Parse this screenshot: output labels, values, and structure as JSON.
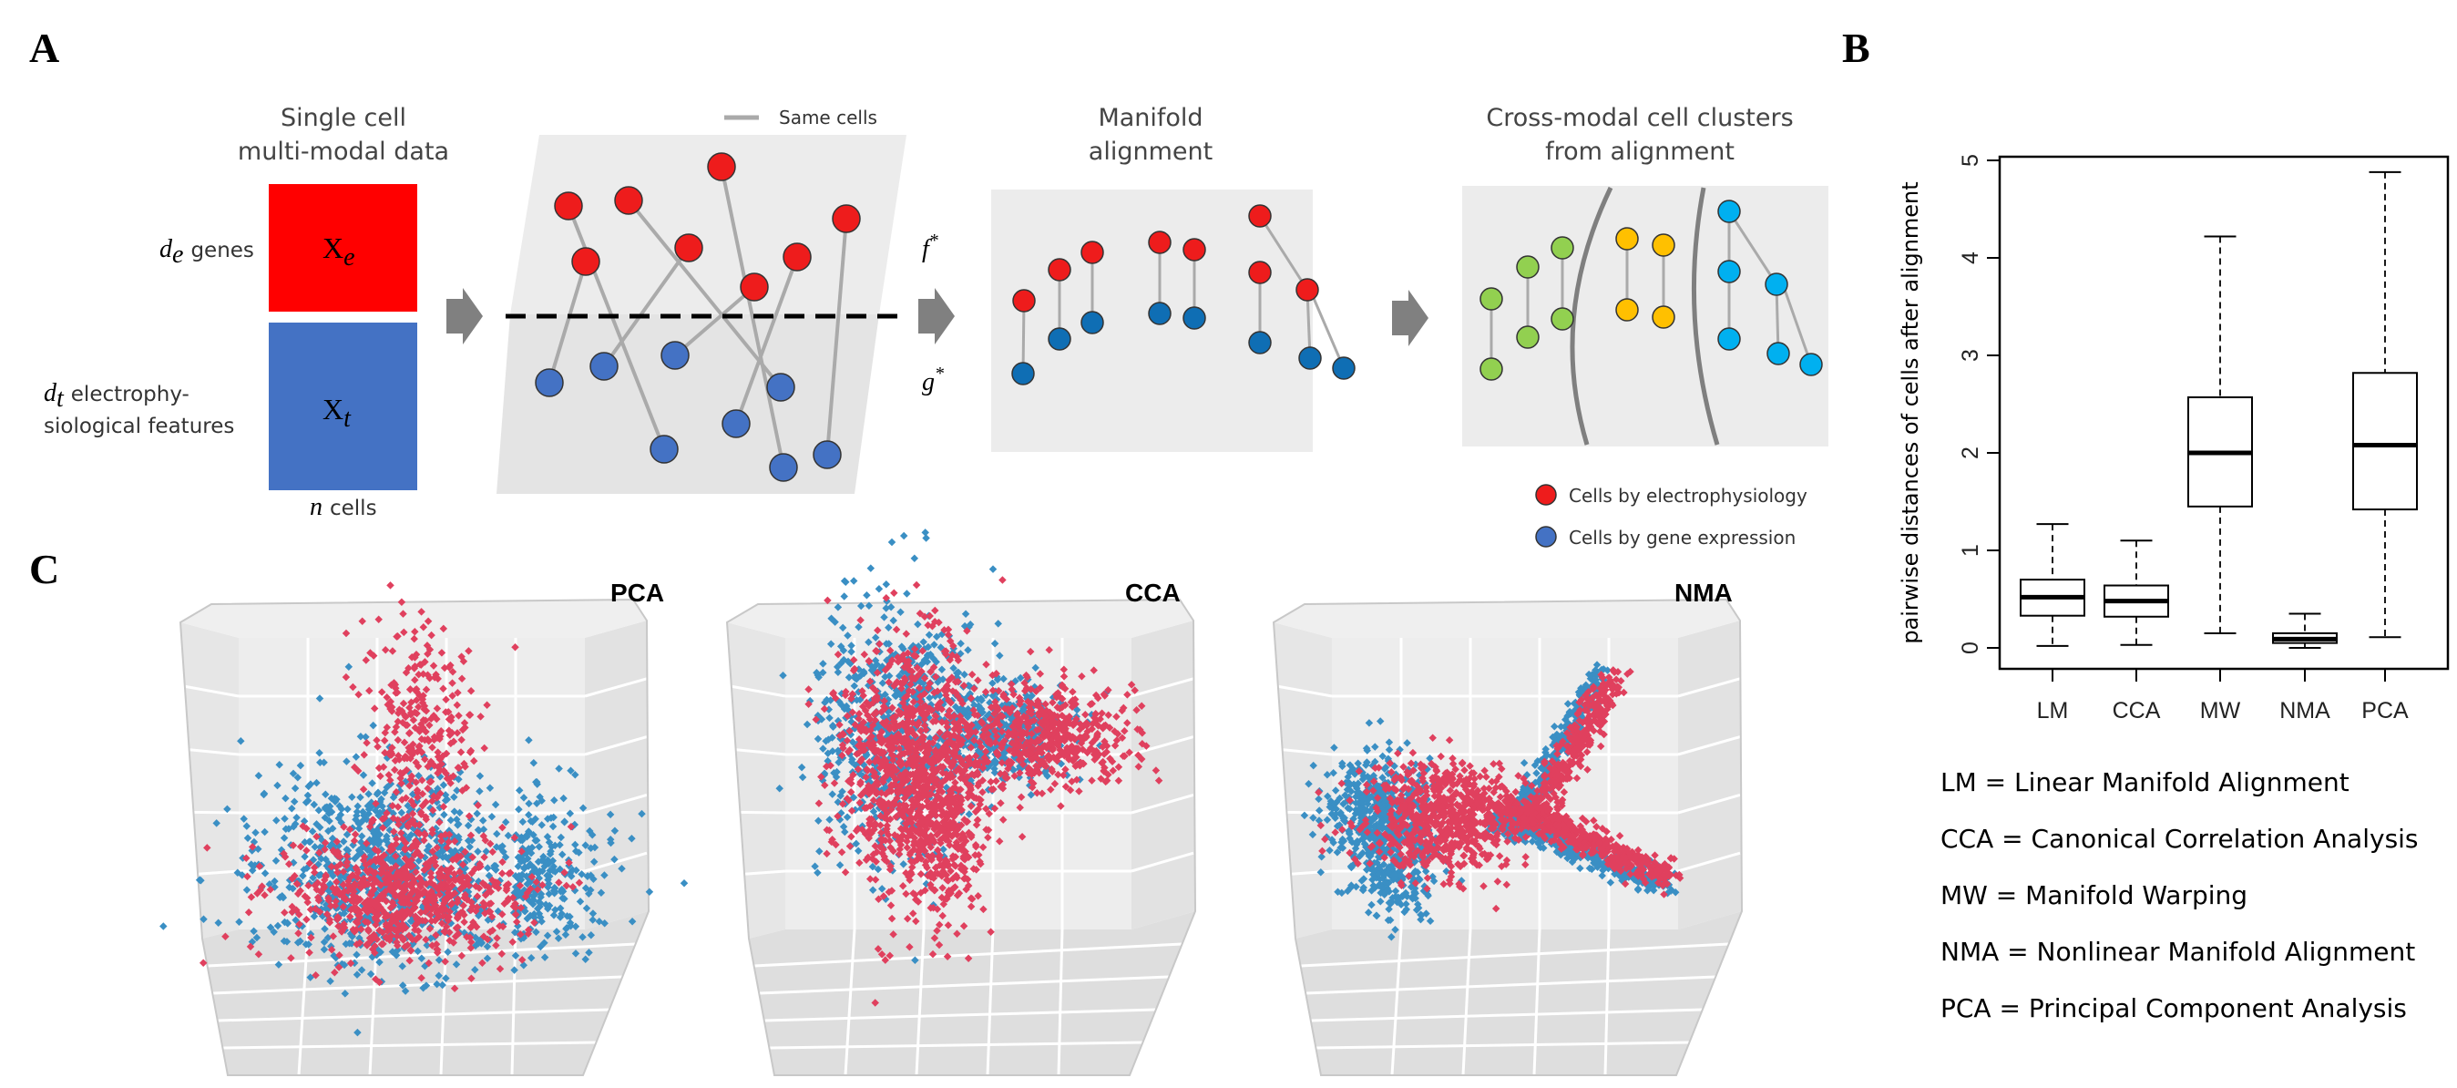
{
  "panels": {
    "a": "A",
    "b": "B",
    "c": "C"
  },
  "panel_a": {
    "step1_title_line1": "Single cell",
    "step1_title_line2": "multi-modal data",
    "genes_label": "genes",
    "genes_var": "d",
    "genes_sub": "e",
    "ephys_label_line1": "electrophy-",
    "ephys_label_line2": "siological features",
    "ephys_var": "d",
    "ephys_sub": "t",
    "xe_main": "X",
    "xe_sub": "e",
    "xt_main": "X",
    "xt_sub": "t",
    "cells_var": "n",
    "cells_label": "cells",
    "same_cells": "Same cells",
    "f_label": "f",
    "g_label": "g",
    "star": "*",
    "step3_title_line1": "Manifold",
    "step3_title_line2": "alignment",
    "step4_title_line1": "Cross-modal cell clusters",
    "step4_title_line2": "from alignment",
    "legend_red": "Cells by electrophysiology",
    "legend_blue": "Cells by gene expression",
    "colors": {
      "red": "#ee1c1c",
      "blue": "#4472c4",
      "green": "#92d050",
      "yellow": "#ffc000",
      "cyan": "#00b0f0",
      "dark_blue": "#0f6eb4"
    }
  },
  "panel_c": {
    "plots": [
      {
        "label": "PCA"
      },
      {
        "label": "CCA"
      },
      {
        "label": "NMA"
      }
    ],
    "colors": {
      "red": "#e0405e",
      "blue": "#3a8fc4"
    }
  },
  "chart_data": {
    "type": "boxplot",
    "categories": [
      "LM",
      "CCA",
      "MW",
      "NMA",
      "PCA"
    ],
    "ylabel": "pairwise distances of cells after alignment",
    "ylim": [
      0,
      5
    ],
    "yticks": [
      0,
      1,
      2,
      3,
      4,
      5
    ],
    "boxes": [
      {
        "name": "LM",
        "min": 0.02,
        "q1": 0.33,
        "median": 0.52,
        "q3": 0.7,
        "max": 1.27
      },
      {
        "name": "CCA",
        "min": 0.03,
        "q1": 0.32,
        "median": 0.48,
        "q3": 0.64,
        "max": 1.1
      },
      {
        "name": "MW",
        "min": 0.15,
        "q1": 1.45,
        "median": 2.0,
        "q3": 2.57,
        "max": 4.22
      },
      {
        "name": "NMA",
        "min": 0.0,
        "q1": 0.05,
        "median": 0.09,
        "q3": 0.15,
        "max": 0.35
      },
      {
        "name": "PCA",
        "min": 0.11,
        "q1": 1.42,
        "median": 2.08,
        "q3": 2.82,
        "max": 4.88
      }
    ],
    "legend": [
      "LM = Linear Manifold Alignment",
      "CCA = Canonical Correlation Analysis",
      "MW = Manifold Warping",
      "NMA = Nonlinear Manifold Alignment",
      "PCA = Principal Component Analysis"
    ]
  }
}
